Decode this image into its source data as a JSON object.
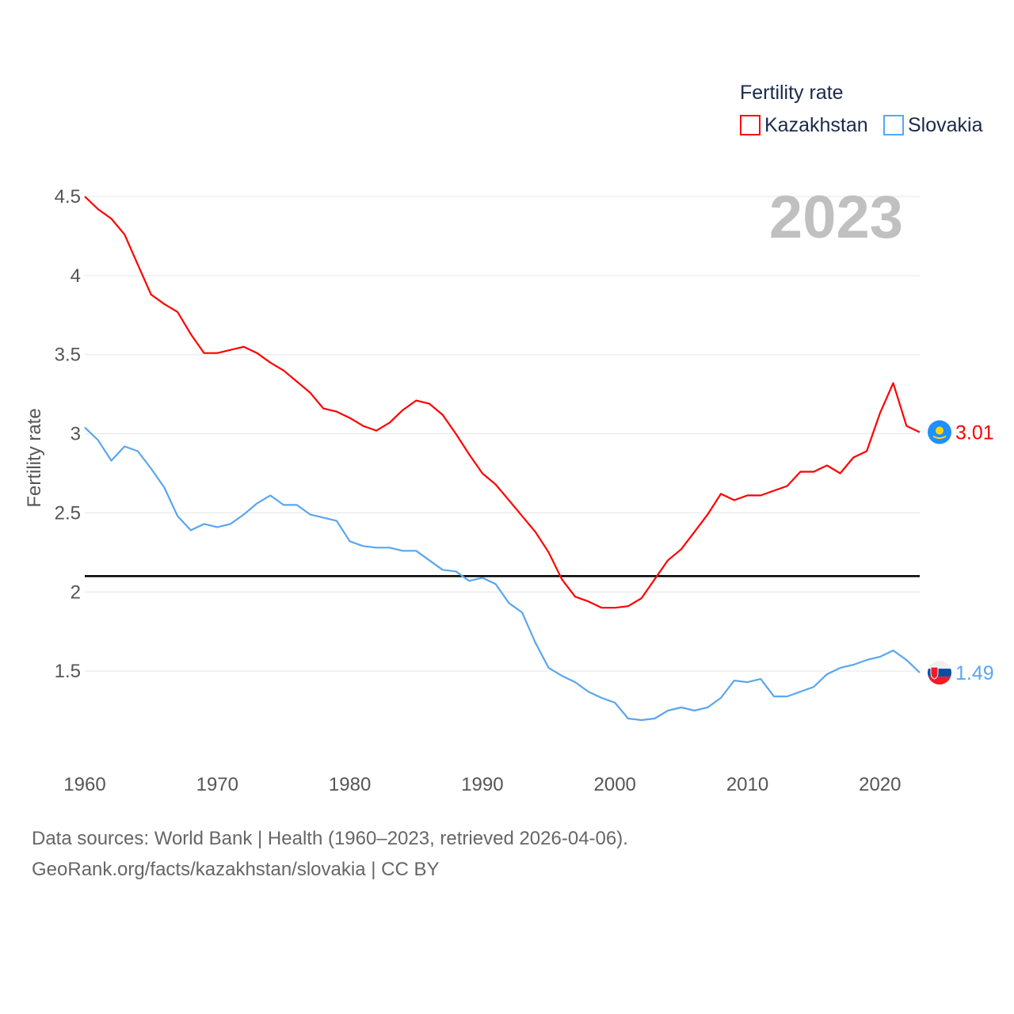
{
  "chart_data": {
    "type": "line",
    "title": "",
    "xlabel": "",
    "ylabel": "Fertility rate",
    "legend_title": "Fertility rate",
    "legend_position": "top-right",
    "year_label": "2023",
    "xlim": [
      1960,
      2023
    ],
    "ylim": [
      1.0,
      4.5
    ],
    "x_ticks": [
      "1960",
      "1970",
      "1980",
      "1990",
      "2000",
      "2010",
      "2020"
    ],
    "y_ticks": [
      "1.5",
      "2",
      "2.5",
      "3",
      "3.5",
      "4",
      "4.5"
    ],
    "grid": true,
    "reference_line": 2.1,
    "x": [
      1960,
      1961,
      1962,
      1963,
      1964,
      1965,
      1966,
      1967,
      1968,
      1969,
      1970,
      1971,
      1972,
      1973,
      1974,
      1975,
      1976,
      1977,
      1978,
      1979,
      1980,
      1981,
      1982,
      1983,
      1984,
      1985,
      1986,
      1987,
      1988,
      1989,
      1990,
      1991,
      1992,
      1993,
      1994,
      1995,
      1996,
      1997,
      1998,
      1999,
      2000,
      2001,
      2002,
      2003,
      2004,
      2005,
      2006,
      2007,
      2008,
      2009,
      2010,
      2011,
      2012,
      2013,
      2014,
      2015,
      2016,
      2017,
      2018,
      2019,
      2020,
      2021,
      2022,
      2023
    ],
    "series": [
      {
        "name": "Kazakhstan",
        "color": "#ff0000",
        "end_label": "3.01",
        "values": [
          4.5,
          4.42,
          4.36,
          4.26,
          4.07,
          3.88,
          3.82,
          3.77,
          3.63,
          3.51,
          3.51,
          3.53,
          3.55,
          3.51,
          3.45,
          3.4,
          3.33,
          3.26,
          3.16,
          3.14,
          3.1,
          3.05,
          3.02,
          3.07,
          3.15,
          3.21,
          3.19,
          3.12,
          3.0,
          2.87,
          2.75,
          2.68,
          2.58,
          2.48,
          2.38,
          2.25,
          2.08,
          1.97,
          1.94,
          1.9,
          1.9,
          1.91,
          1.96,
          2.08,
          2.2,
          2.27,
          2.38,
          2.49,
          2.62,
          2.58,
          2.61,
          2.61,
          2.64,
          2.67,
          2.76,
          2.76,
          2.8,
          2.75,
          2.85,
          2.89,
          3.13,
          3.32,
          3.05,
          3.01
        ]
      },
      {
        "name": "Slovakia",
        "color": "#5aa6f0",
        "end_label": "1.49",
        "values": [
          3.04,
          2.96,
          2.83,
          2.92,
          2.89,
          2.78,
          2.66,
          2.48,
          2.39,
          2.43,
          2.41,
          2.43,
          2.49,
          2.56,
          2.61,
          2.55,
          2.55,
          2.49,
          2.47,
          2.45,
          2.32,
          2.29,
          2.28,
          2.28,
          2.26,
          2.26,
          2.2,
          2.14,
          2.13,
          2.07,
          2.09,
          2.05,
          1.93,
          1.87,
          1.68,
          1.52,
          1.47,
          1.43,
          1.37,
          1.33,
          1.3,
          1.2,
          1.19,
          1.2,
          1.25,
          1.27,
          1.25,
          1.27,
          1.33,
          1.44,
          1.43,
          1.45,
          1.34,
          1.34,
          1.37,
          1.4,
          1.48,
          1.52,
          1.54,
          1.57,
          1.59,
          1.63,
          1.57,
          1.49
        ]
      }
    ]
  },
  "footer": {
    "line1": "Data sources: World Bank | Health (1960–2023, retrieved 2026-04-06).",
    "line2": "GeoRank.org/facts/kazakhstan/slovakia | CC BY"
  }
}
